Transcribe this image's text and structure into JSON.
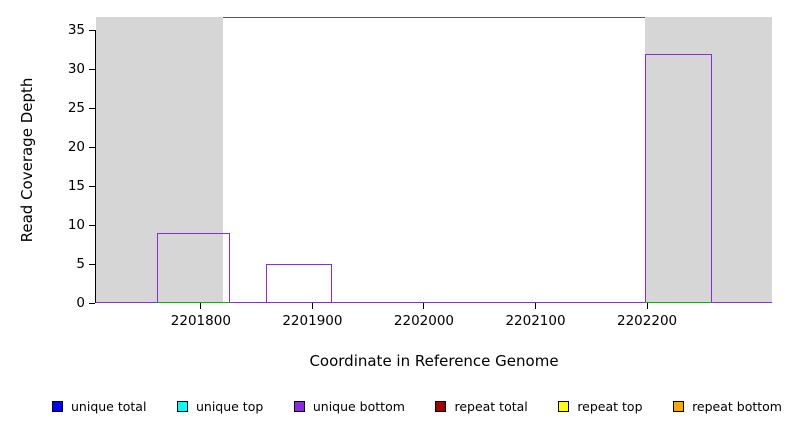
{
  "chart_data": {
    "type": "step-area",
    "title": "",
    "xlabel": "Coordinate in Reference Genome",
    "ylabel": "Read Coverage Depth",
    "xlim": [
      2201706,
      2202312
    ],
    "ylim": [
      0,
      35
    ],
    "x_ticks": [
      2201800,
      2201900,
      2202000,
      2202100,
      2202200
    ],
    "y_ticks": [
      0,
      5,
      10,
      15,
      20,
      25,
      30,
      35
    ],
    "grid": false,
    "legend_position": "bottom",
    "shaded_regions": [
      {
        "name": "shaded-region-left",
        "x0": 2201706,
        "x1": 2201820,
        "color": "#D6D6D6"
      },
      {
        "name": "shaded-region-right",
        "x0": 2202198,
        "x1": 2202312,
        "color": "#D6D6D6"
      }
    ],
    "series": [
      {
        "name": "unique bottom",
        "type": "step",
        "color": "#8A2BE2",
        "baseline": 0,
        "bars": [
          {
            "x0": 2201761,
            "x1": 2201826,
            "height": 9
          },
          {
            "x0": 2201858,
            "x1": 2201918,
            "height": 5
          },
          {
            "x0": 2202198,
            "x1": 2202258,
            "height": 32
          }
        ]
      },
      {
        "name": "baseline-green",
        "type": "segments",
        "color": "#00B400",
        "segments": [
          {
            "x0": 2201761,
            "x1": 2201826,
            "y": 0
          },
          {
            "x0": 2202198,
            "x1": 2202258,
            "y": 0
          }
        ]
      }
    ],
    "legend": [
      {
        "label": "unique total",
        "color": "#0000FF"
      },
      {
        "label": "unique top",
        "color": "#00FFFF"
      },
      {
        "label": "unique bottom",
        "color": "#8A2BE2"
      },
      {
        "label": "repeat total",
        "color": "#A00000"
      },
      {
        "label": "repeat top",
        "color": "#FFFF00"
      },
      {
        "label": "repeat bottom",
        "color": "#FFA500"
      }
    ]
  }
}
